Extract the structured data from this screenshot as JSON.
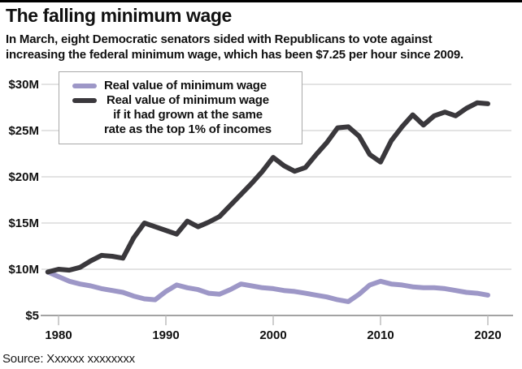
{
  "page": {
    "top_bar_color": "#000000",
    "background": "#ffffff"
  },
  "header": {
    "title": "The falling minimum wage",
    "subtitle_lines": [
      "In March, eight Democratic senators sided with Republicans to vote against",
      "increasing the federal minimum wage, which has been $7.25 per hour since 2009."
    ]
  },
  "legend": {
    "items": [
      {
        "swatch_color": "#9d97c7",
        "lines": [
          "Real value of minimum wage"
        ]
      },
      {
        "swatch_color": "#3a383c",
        "lines": [
          "Real value of minimum wage",
          "if it had grown at the same",
          "rate as the top 1% of incomes"
        ]
      }
    ]
  },
  "source": {
    "text": "Source: Xxxxxx xxxxxxxx"
  },
  "chart_data": {
    "type": "line",
    "title": "The falling minimum wage",
    "x": [
      1979,
      1980,
      1981,
      1982,
      1983,
      1984,
      1985,
      1986,
      1987,
      1988,
      1989,
      1990,
      1991,
      1992,
      1993,
      1994,
      1995,
      1996,
      1997,
      1998,
      1999,
      2000,
      2001,
      2002,
      2003,
      2004,
      2005,
      2006,
      2007,
      2008,
      2009,
      2010,
      2011,
      2012,
      2013,
      2014,
      2015,
      2016,
      2017,
      2018,
      2019,
      2020
    ],
    "series": [
      {
        "name": "Real value of minimum wage",
        "color": "#9d97c7",
        "values": [
          9.7,
          9.2,
          8.7,
          8.4,
          8.2,
          7.9,
          7.7,
          7.5,
          7.1,
          6.8,
          6.7,
          7.6,
          8.3,
          8.0,
          7.8,
          7.4,
          7.3,
          7.8,
          8.4,
          8.2,
          8.0,
          7.9,
          7.7,
          7.6,
          7.4,
          7.2,
          7.0,
          6.7,
          6.5,
          7.3,
          8.3,
          8.7,
          8.4,
          8.3,
          8.1,
          8.0,
          8.0,
          7.9,
          7.7,
          7.5,
          7.4,
          7.2
        ]
      },
      {
        "name": "Real value of minimum wage if it had grown at the same rate as the top 1% of incomes",
        "color": "#3a383c",
        "values": [
          9.7,
          10.0,
          9.9,
          10.2,
          10.9,
          11.5,
          11.4,
          11.2,
          13.4,
          15.0,
          14.6,
          14.2,
          13.8,
          15.2,
          14.6,
          15.1,
          15.7,
          16.9,
          18.1,
          19.3,
          20.6,
          22.1,
          21.2,
          20.6,
          21.0,
          22.4,
          23.7,
          25.3,
          25.4,
          24.4,
          22.4,
          21.6,
          23.9,
          25.4,
          26.7,
          25.6,
          26.6,
          27.0,
          26.6,
          27.4,
          28.0,
          27.9
        ]
      }
    ],
    "xticks": [
      1980,
      1990,
      2000,
      2010,
      2020
    ],
    "yticks": [
      {
        "label": "$30M",
        "value": 30
      },
      {
        "label": "$25M",
        "value": 25
      },
      {
        "label": "$20M",
        "value": 20
      },
      {
        "label": "$15M",
        "value": 15
      },
      {
        "label": "$10M",
        "value": 10
      },
      {
        "label": "$5",
        "value": 5
      }
    ],
    "xlim": [
      1979,
      2020
    ],
    "ylim": [
      5,
      30
    ],
    "grid": "horizontal",
    "legend_position": "top-left",
    "colors": {
      "grid": "#d2d2d2",
      "axis": "#a3a3a3",
      "tick": "#bdbdbd",
      "label": "#111111"
    }
  }
}
